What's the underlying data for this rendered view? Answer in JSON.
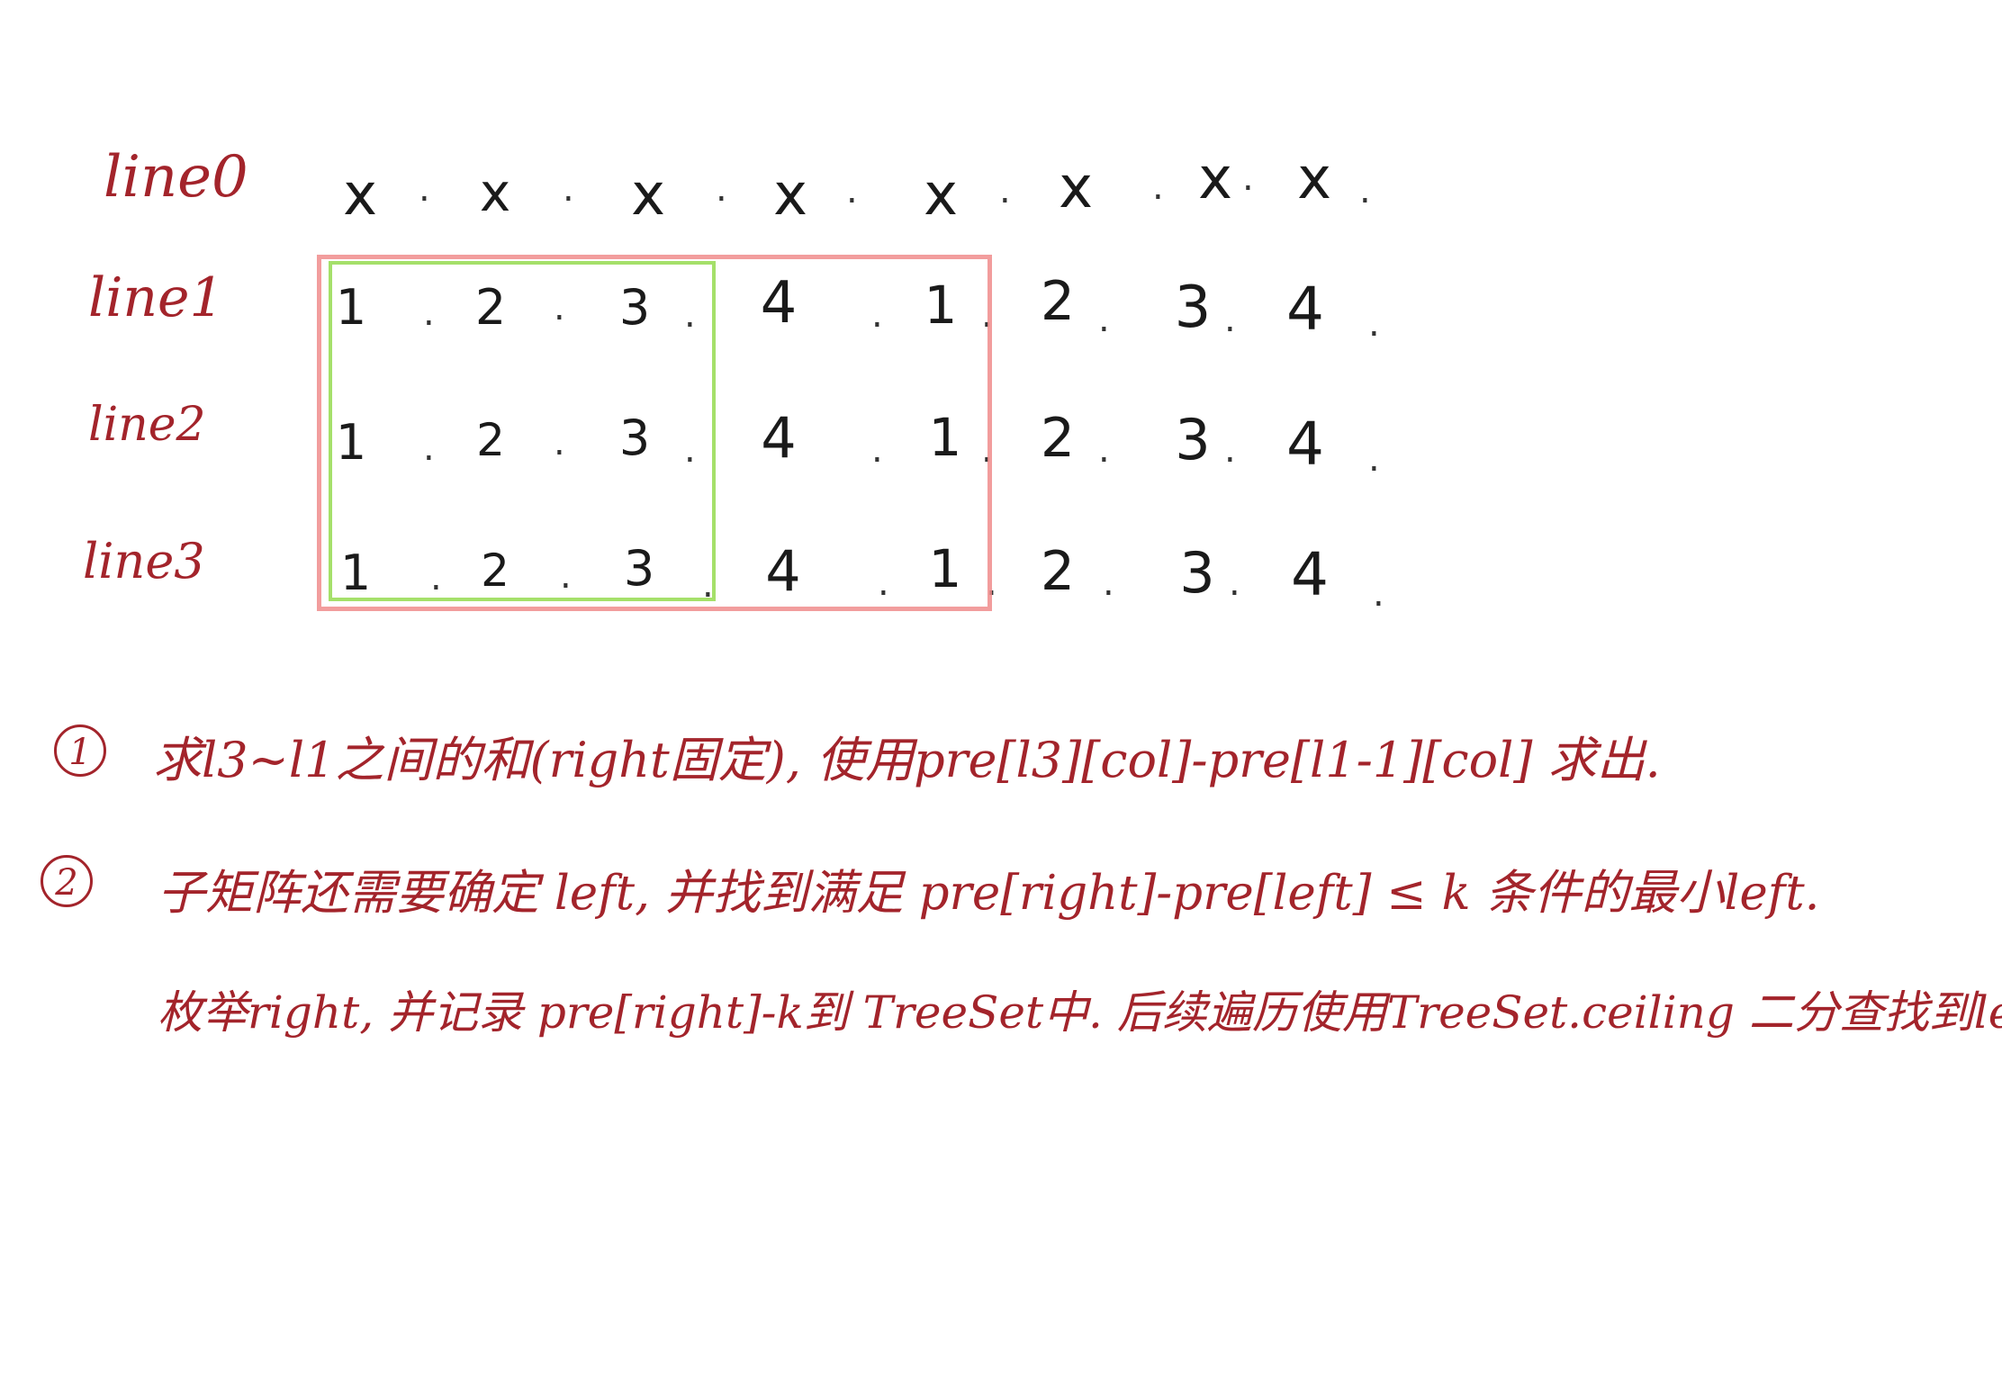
{
  "rows": [
    {
      "label": "line0",
      "values": [
        "x",
        "x",
        "x",
        "x",
        "x",
        "x",
        "x",
        "x"
      ]
    },
    {
      "label": "line1",
      "values": [
        "1",
        "2",
        "3",
        "4",
        "1",
        "2",
        "3",
        "4"
      ]
    },
    {
      "label": "line2",
      "values": [
        "1",
        "2",
        "3",
        "4",
        "1",
        "2",
        "3",
        "4"
      ]
    },
    {
      "label": "line3",
      "values": [
        "1",
        "2",
        "3",
        "4",
        "1",
        "2",
        "3",
        "4"
      ]
    }
  ],
  "separator": ".",
  "highlight_colors": {
    "outer": "#f08c8c",
    "inner": "#a5e06a"
  },
  "notes": {
    "n1": {
      "number": "1",
      "text": "求l3~l1之间的和(right固定), 使用pre[l3][col]-pre[l1-1][col] 求出."
    },
    "n2": {
      "number": "2",
      "line1": "子矩阵还需要确定 left, 并找到满足 pre[right]-pre[left] ≤ k 条件的最小left.",
      "line2": "枚举right, 并记录 pre[right]-k到 TreeSet中. 后续遍历使用TreeSet.ceiling 二分查找到left."
    }
  }
}
